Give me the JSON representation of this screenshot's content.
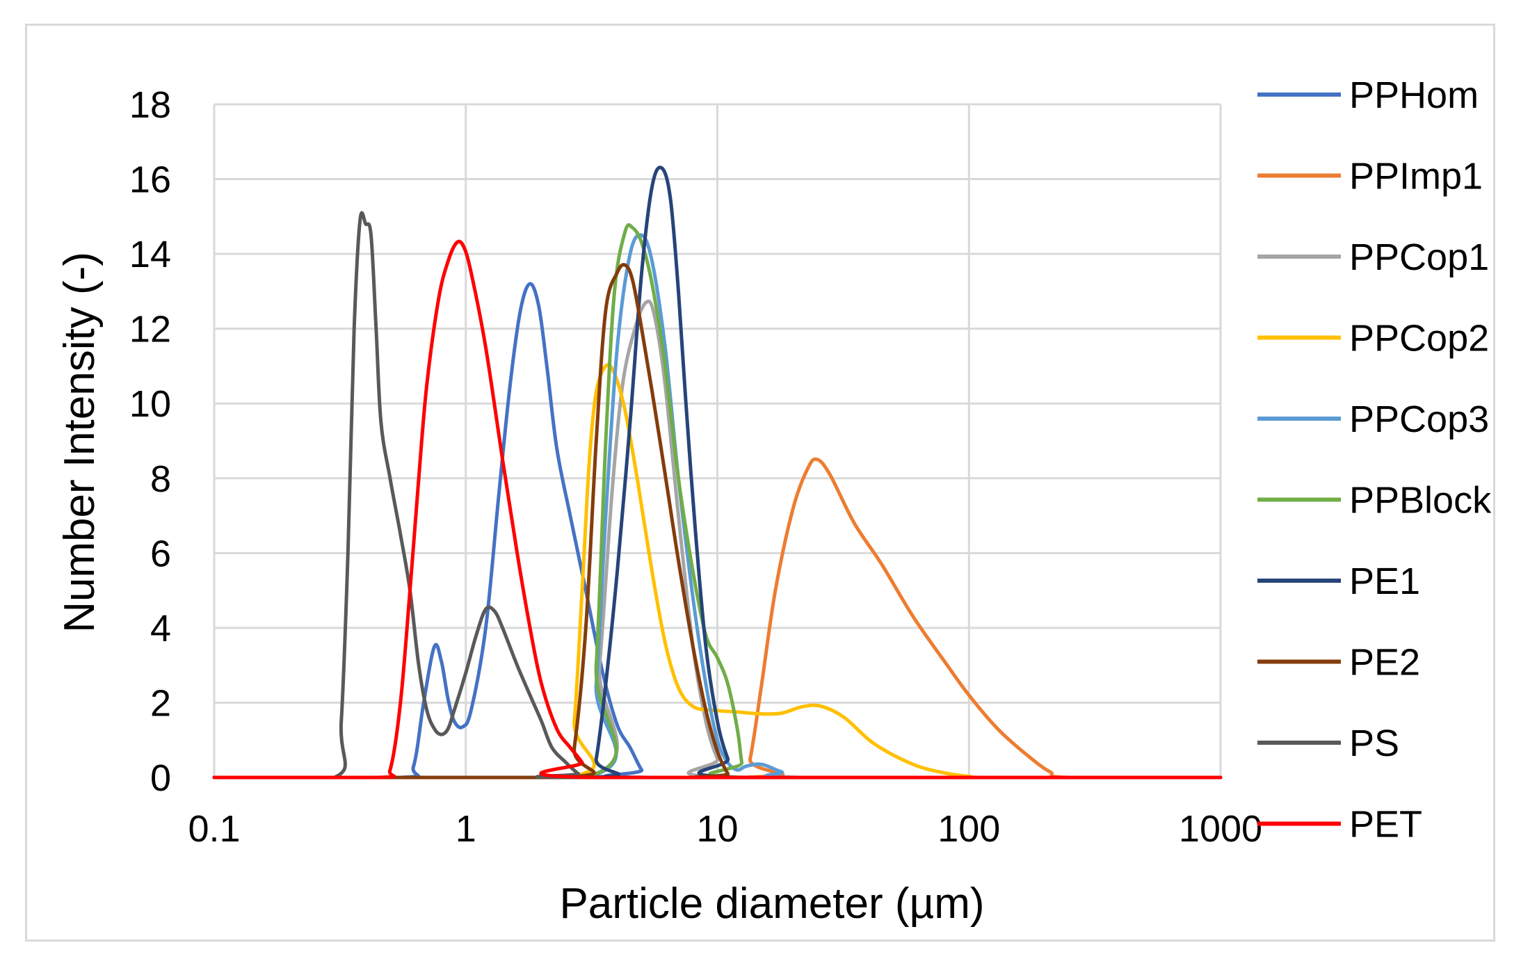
{
  "chart_data": {
    "type": "line",
    "title": "",
    "xlabel": "Particle diameter (µm)",
    "ylabel": "Number Intensity (-)",
    "x_scale": "log",
    "xlim": [
      0.1,
      1000
    ],
    "ylim": [
      0,
      18
    ],
    "x_ticks": [
      "0.1",
      "1",
      "10",
      "100",
      "1000"
    ],
    "y_ticks": [
      "0",
      "2",
      "4",
      "6",
      "8",
      "10",
      "12",
      "14",
      "16",
      "18"
    ],
    "grid": true,
    "legend_position": "right",
    "series": [
      {
        "name": "PPHom",
        "color": "#4472c4",
        "points": [
          [
            0.1,
            0
          ],
          [
            0.55,
            0
          ],
          [
            0.62,
            0.3
          ],
          [
            0.68,
            2
          ],
          [
            0.75,
            3.5
          ],
          [
            0.8,
            3.1
          ],
          [
            0.85,
            2.1
          ],
          [
            0.9,
            1.5
          ],
          [
            0.97,
            1.35
          ],
          [
            1.05,
            1.8
          ],
          [
            1.2,
            4
          ],
          [
            1.35,
            7.5
          ],
          [
            1.5,
            10.5
          ],
          [
            1.65,
            12.5
          ],
          [
            1.8,
            13.2
          ],
          [
            1.95,
            12.6
          ],
          [
            2.1,
            11
          ],
          [
            2.3,
            8.8
          ],
          [
            2.6,
            7
          ],
          [
            3,
            5
          ],
          [
            3.5,
            2.8
          ],
          [
            4,
            1.4
          ],
          [
            4.5,
            0.8
          ],
          [
            5,
            0.2
          ],
          [
            5.4,
            0
          ],
          [
            1000,
            0
          ]
        ]
      },
      {
        "name": "PPImp1",
        "color": "#ed7d31",
        "points": [
          [
            0.1,
            0
          ],
          [
            12.5,
            0
          ],
          [
            13.5,
            0.5
          ],
          [
            15,
            2.5
          ],
          [
            17,
            5
          ],
          [
            20,
            7.2
          ],
          [
            23,
            8.3
          ],
          [
            25,
            8.5
          ],
          [
            28,
            8.1
          ],
          [
            35,
            6.8
          ],
          [
            45,
            5.7
          ],
          [
            60,
            4.3
          ],
          [
            80,
            3.1
          ],
          [
            100,
            2.2
          ],
          [
            130,
            1.3
          ],
          [
            170,
            0.6
          ],
          [
            210,
            0.15
          ],
          [
            250,
            0
          ],
          [
            1000,
            0
          ]
        ]
      },
      {
        "name": "PPCop1",
        "color": "#a5a5a5",
        "points": [
          [
            0.1,
            0
          ],
          [
            3,
            0
          ],
          [
            3.4,
            3
          ],
          [
            3.8,
            7.5
          ],
          [
            4.2,
            10.5
          ],
          [
            4.7,
            12
          ],
          [
            5.2,
            12.7
          ],
          [
            5.6,
            12.4
          ],
          [
            6.2,
            10.5
          ],
          [
            7,
            7
          ],
          [
            8,
            3.5
          ],
          [
            9,
            1.5
          ],
          [
            10,
            0.5
          ],
          [
            11,
            0
          ],
          [
            1000,
            0
          ]
        ]
      },
      {
        "name": "PPCop2",
        "color": "#ffc000",
        "points": [
          [
            0.1,
            0
          ],
          [
            2.5,
            0
          ],
          [
            2.7,
            1.5
          ],
          [
            2.9,
            5
          ],
          [
            3.1,
            8.5
          ],
          [
            3.3,
            10.3
          ],
          [
            3.6,
            11
          ],
          [
            3.9,
            10.8
          ],
          [
            4.3,
            9.8
          ],
          [
            4.8,
            8
          ],
          [
            5.5,
            5.5
          ],
          [
            6.2,
            3.6
          ],
          [
            7,
            2.4
          ],
          [
            8,
            1.9
          ],
          [
            9.5,
            1.8
          ],
          [
            12,
            1.75
          ],
          [
            15,
            1.7
          ],
          [
            18,
            1.72
          ],
          [
            22,
            1.9
          ],
          [
            26,
            1.9
          ],
          [
            32,
            1.6
          ],
          [
            42,
            0.9
          ],
          [
            60,
            0.35
          ],
          [
            80,
            0.12
          ],
          [
            100,
            0.03
          ],
          [
            130,
            0
          ],
          [
            1000,
            0
          ]
        ]
      },
      {
        "name": "PPCop3",
        "color": "#5b9bd5",
        "points": [
          [
            0.1,
            0
          ],
          [
            3,
            0
          ],
          [
            3.3,
            2.5
          ],
          [
            3.6,
            7
          ],
          [
            4,
            11.5
          ],
          [
            4.5,
            14
          ],
          [
            5,
            14.5
          ],
          [
            5.5,
            13.8
          ],
          [
            6.2,
            11.5
          ],
          [
            7,
            8
          ],
          [
            8,
            4.8
          ],
          [
            9,
            2.5
          ],
          [
            10,
            1
          ],
          [
            11,
            0.4
          ],
          [
            12,
            0.2
          ],
          [
            13,
            0.3
          ],
          [
            15,
            0.35
          ],
          [
            18,
            0.15
          ],
          [
            22,
            0
          ],
          [
            1000,
            0
          ]
        ]
      },
      {
        "name": "PPBlock",
        "color": "#70ad47",
        "points": [
          [
            0.1,
            0
          ],
          [
            3,
            0
          ],
          [
            3.3,
            3
          ],
          [
            3.6,
            9
          ],
          [
            3.9,
            13
          ],
          [
            4.3,
            14.6
          ],
          [
            4.6,
            14.7
          ],
          [
            5,
            14.3
          ],
          [
            5.5,
            13.2
          ],
          [
            6.2,
            11
          ],
          [
            7,
            8
          ],
          [
            8,
            5.5
          ],
          [
            9,
            3.8
          ],
          [
            10,
            3.2
          ],
          [
            11,
            2.5
          ],
          [
            12,
            1.3
          ],
          [
            12.5,
            0.4
          ],
          [
            13,
            0
          ],
          [
            1000,
            0
          ]
        ]
      },
      {
        "name": "PE1",
        "color": "#264478",
        "points": [
          [
            0.1,
            0
          ],
          [
            3.1,
            0
          ],
          [
            3.3,
            0.5
          ],
          [
            3.6,
            2.5
          ],
          [
            4,
            5.5
          ],
          [
            4.5,
            9.5
          ],
          [
            5,
            13.5
          ],
          [
            5.5,
            15.8
          ],
          [
            6,
            16.3
          ],
          [
            6.5,
            15.5
          ],
          [
            7,
            13
          ],
          [
            7.5,
            10
          ],
          [
            8.2,
            6.5
          ],
          [
            9,
            3.5
          ],
          [
            10,
            1.5
          ],
          [
            11,
            0.5
          ],
          [
            12,
            0
          ],
          [
            1000,
            0
          ]
        ]
      },
      {
        "name": "PE2",
        "color": "#843c0c",
        "points": [
          [
            0.1,
            0
          ],
          [
            2.5,
            0
          ],
          [
            2.7,
            0.8
          ],
          [
            3,
            4
          ],
          [
            3.3,
            9
          ],
          [
            3.6,
            12.5
          ],
          [
            4,
            13.5
          ],
          [
            4.3,
            13.7
          ],
          [
            4.6,
            13.3
          ],
          [
            5,
            12
          ],
          [
            5.6,
            10
          ],
          [
            6.3,
            7.8
          ],
          [
            7,
            5.8
          ],
          [
            8,
            3.5
          ],
          [
            9,
            1.8
          ],
          [
            10,
            0.7
          ],
          [
            11,
            0.1
          ],
          [
            11.5,
            0
          ],
          [
            1000,
            0
          ]
        ]
      },
      {
        "name": "PS",
        "color": "#595959",
        "points": [
          [
            0.1,
            0
          ],
          [
            0.3,
            0
          ],
          [
            0.32,
            1.5
          ],
          [
            0.34,
            6
          ],
          [
            0.36,
            12
          ],
          [
            0.38,
            14.9
          ],
          [
            0.4,
            14.8
          ],
          [
            0.42,
            14.5
          ],
          [
            0.44,
            12
          ],
          [
            0.46,
            9.5
          ],
          [
            0.5,
            8
          ],
          [
            0.55,
            6.5
          ],
          [
            0.6,
            5
          ],
          [
            0.65,
            3
          ],
          [
            0.7,
            1.8
          ],
          [
            0.75,
            1.3
          ],
          [
            0.8,
            1.15
          ],
          [
            0.85,
            1.3
          ],
          [
            0.9,
            1.8
          ],
          [
            1,
            2.8
          ],
          [
            1.1,
            3.8
          ],
          [
            1.2,
            4.5
          ],
          [
            1.3,
            4.45
          ],
          [
            1.4,
            4
          ],
          [
            1.6,
            3
          ],
          [
            1.8,
            2.2
          ],
          [
            2,
            1.5
          ],
          [
            2.2,
            0.8
          ],
          [
            2.5,
            0.4
          ],
          [
            2.8,
            0.1
          ],
          [
            3,
            0
          ],
          [
            1000,
            0
          ]
        ]
      },
      {
        "name": "PET",
        "color": "#ff0000",
        "points": [
          [
            0.1,
            0
          ],
          [
            0.45,
            0
          ],
          [
            0.5,
            0.2
          ],
          [
            0.55,
            2
          ],
          [
            0.6,
            5
          ],
          [
            0.65,
            8
          ],
          [
            0.7,
            10.5
          ],
          [
            0.78,
            12.8
          ],
          [
            0.85,
            13.8
          ],
          [
            0.92,
            14.3
          ],
          [
            0.98,
            14.2
          ],
          [
            1.05,
            13.5
          ],
          [
            1.2,
            11.5
          ],
          [
            1.4,
            8.5
          ],
          [
            1.6,
            6
          ],
          [
            1.8,
            4
          ],
          [
            2,
            2.5
          ],
          [
            2.3,
            1.3
          ],
          [
            2.6,
            0.8
          ],
          [
            2.9,
            0.4
          ],
          [
            3.1,
            0
          ],
          [
            1000,
            0
          ]
        ]
      }
    ]
  }
}
